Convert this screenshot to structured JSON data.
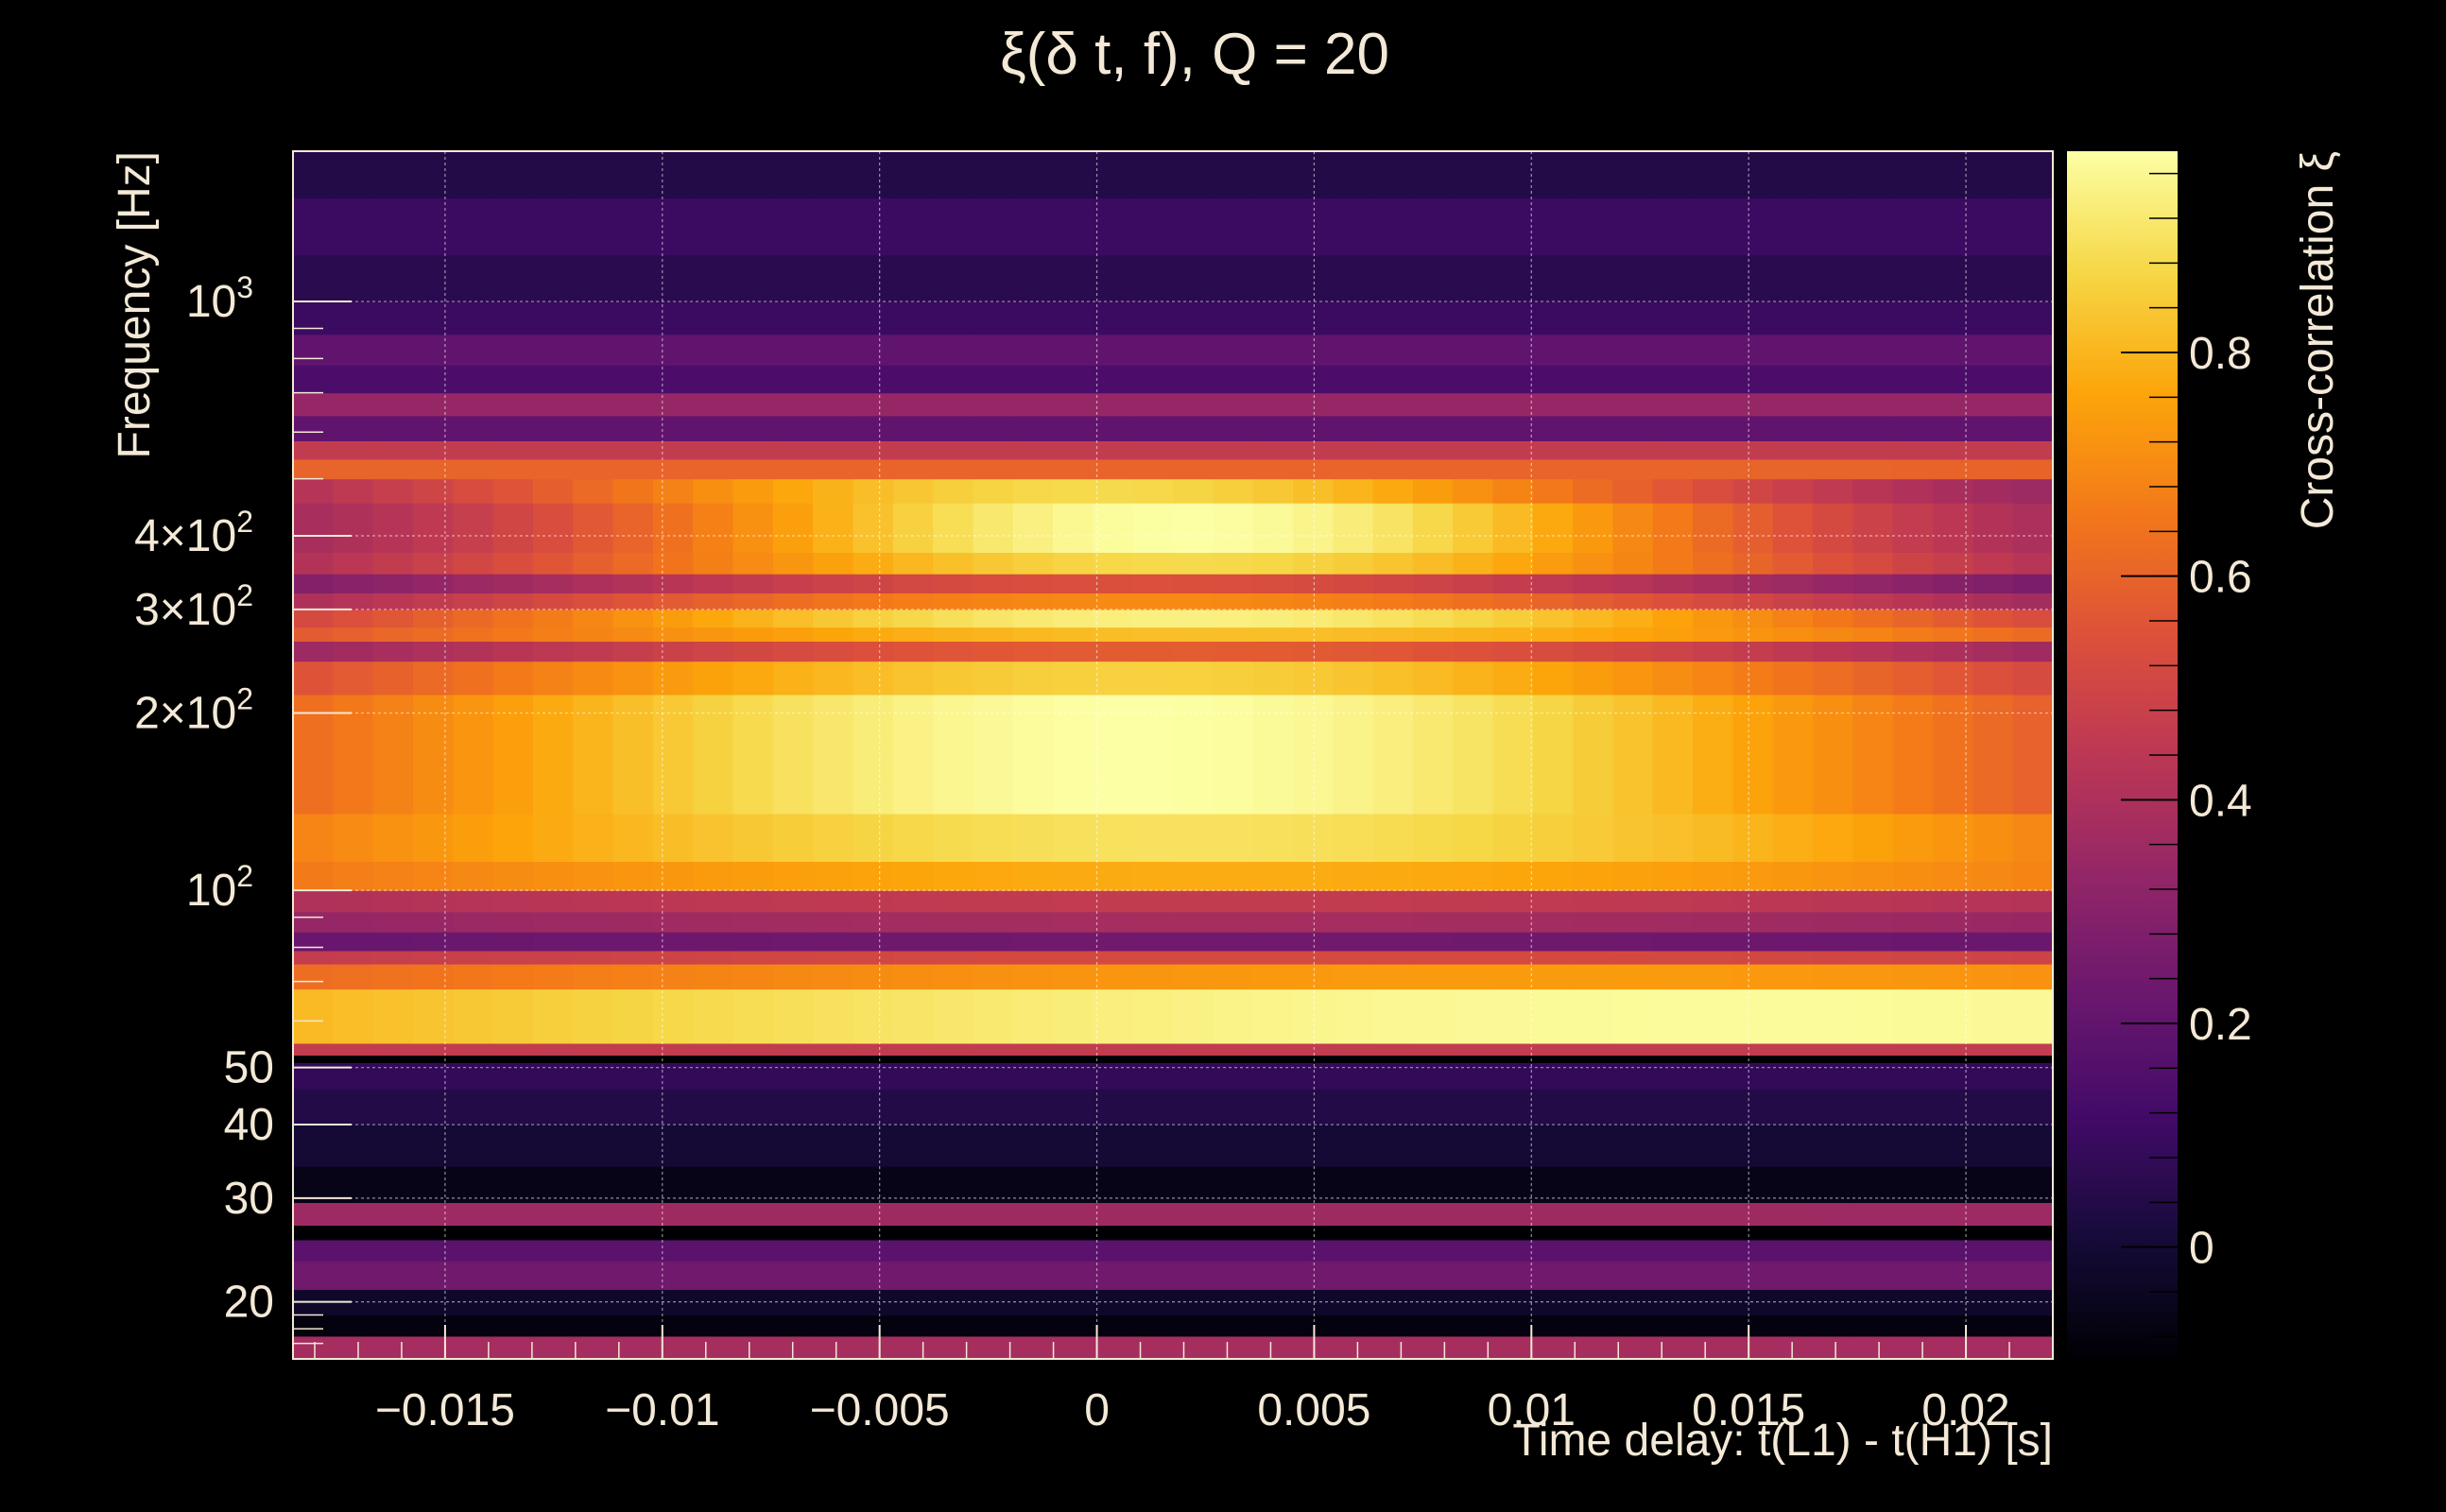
{
  "chart_data": {
    "type": "heatmap",
    "title": "ξ(δ t, f), Q = 20",
    "xlabel": "Time delay: t(L1) - t(H1) [s]",
    "ylabel": "Frequency [Hz]",
    "colorbar_label": "Cross-correlation ξ",
    "xlim": [
      -0.0185,
      0.022
    ],
    "ylim": [
      16,
      1800
    ],
    "y_scale": "log",
    "grid": true,
    "colormap": "inferno",
    "zlim": [
      -0.1,
      0.98
    ],
    "x_ticks": [
      {
        "value": -0.015,
        "label": "−0.015"
      },
      {
        "value": -0.01,
        "label": "−0.01"
      },
      {
        "value": -0.005,
        "label": "−0.005"
      },
      {
        "value": 0,
        "label": "0"
      },
      {
        "value": 0.005,
        "label": "0.005"
      },
      {
        "value": 0.01,
        "label": "0.01"
      },
      {
        "value": 0.015,
        "label": "0.015"
      },
      {
        "value": 0.02,
        "label": "0.02"
      }
    ],
    "y_ticks": [
      {
        "value": 20,
        "label": "20"
      },
      {
        "value": 30,
        "label": "30"
      },
      {
        "value": 40,
        "label": "40"
      },
      {
        "value": 50,
        "label": "50"
      },
      {
        "value": 100,
        "label": "10",
        "sup": "2"
      },
      {
        "value": 200,
        "label": "2×10",
        "sup": "2"
      },
      {
        "value": 300,
        "label": "3×10",
        "sup": "2"
      },
      {
        "value": 400,
        "label": "4×10",
        "sup": "2"
      },
      {
        "value": 1000,
        "label": "10",
        "sup": "3"
      }
    ],
    "colorbar_ticks": [
      {
        "value": 0,
        "label": "0"
      },
      {
        "value": 0.2,
        "label": "0.2"
      },
      {
        "value": 0.4,
        "label": "0.4"
      },
      {
        "value": 0.6,
        "label": "0.6"
      },
      {
        "value": 0.8,
        "label": "0.8"
      }
    ],
    "bands": [
      {
        "f_low": 16,
        "f_high": 17.5,
        "peak": 0.38,
        "t_center": 0.003,
        "width": 0.25,
        "tilt": 0
      },
      {
        "f_low": 17.5,
        "f_high": 19.0,
        "peak": -0.08,
        "t_center": 0.003,
        "width": 0.3,
        "tilt": 0
      },
      {
        "f_low": 19.0,
        "f_high": 21.0,
        "peak": -0.02,
        "t_center": 0.003,
        "width": 0.3,
        "tilt": 0
      },
      {
        "f_low": 21.0,
        "f_high": 23.5,
        "peak": 0.24,
        "t_center": 0.003,
        "width": 0.25,
        "tilt": 0
      },
      {
        "f_low": 23.5,
        "f_high": 25.5,
        "peak": 0.18,
        "t_center": 0.003,
        "width": 0.25,
        "tilt": 0
      },
      {
        "f_low": 25.5,
        "f_high": 27.0,
        "peak": -0.12,
        "t_center": 0.003,
        "width": 0.3,
        "tilt": 0
      },
      {
        "f_low": 27.0,
        "f_high": 29.5,
        "peak": 0.36,
        "t_center": 0.003,
        "width": 0.25,
        "tilt": 0
      },
      {
        "f_low": 29.5,
        "f_high": 34.0,
        "peak": -0.06,
        "t_center": 0.003,
        "width": 0.3,
        "tilt": 0
      },
      {
        "f_low": 34.0,
        "f_high": 40.0,
        "peak": 0.0,
        "t_center": 0.003,
        "width": 0.3,
        "tilt": 0
      },
      {
        "f_low": 40.0,
        "f_high": 46.0,
        "peak": 0.04,
        "t_center": 0.003,
        "width": 0.3,
        "tilt": 0
      },
      {
        "f_low": 46.0,
        "f_high": 51.0,
        "peak": 0.08,
        "t_center": 0.003,
        "width": 0.3,
        "tilt": 0
      },
      {
        "f_low": 51.0,
        "f_high": 52.5,
        "peak": -0.12,
        "t_center": 0.003,
        "width": 0.3,
        "tilt": 0
      },
      {
        "f_low": 52.5,
        "f_high": 55.0,
        "peak": 0.46,
        "t_center": 0.003,
        "width": 0.25,
        "tilt": 0
      },
      {
        "f_low": 55.0,
        "f_high": 68.0,
        "peak": 0.97,
        "t_center": 0.015,
        "width": 0.045,
        "tilt": 0
      },
      {
        "f_low": 68.0,
        "f_high": 75.0,
        "peak": 0.74,
        "t_center": 0.01,
        "width": 0.04,
        "tilt": 0
      },
      {
        "f_low": 75.0,
        "f_high": 79.0,
        "peak": 0.52,
        "t_center": 0.005,
        "width": 0.04,
        "tilt": 0
      },
      {
        "f_low": 79.0,
        "f_high": 85.0,
        "peak": 0.24,
        "t_center": 0.003,
        "width": 0.04,
        "tilt": 0
      },
      {
        "f_low": 85.0,
        "f_high": 92.0,
        "peak": 0.38,
        "t_center": 0.003,
        "width": 0.035,
        "tilt": 0
      },
      {
        "f_low": 92.0,
        "f_high": 100.0,
        "peak": 0.46,
        "t_center": 0.003,
        "width": 0.035,
        "tilt": 0
      },
      {
        "f_low": 100.0,
        "f_high": 112.0,
        "peak": 0.78,
        "t_center": 0.003,
        "width": 0.03,
        "tilt": 0
      },
      {
        "f_low": 112.0,
        "f_high": 135.0,
        "peak": 0.9,
        "t_center": 0.002,
        "width": 0.022,
        "tilt": 0
      },
      {
        "f_low": 135.0,
        "f_high": 215.0,
        "peak": 0.98,
        "t_center": 0.001,
        "width": 0.016,
        "tilt": 0
      },
      {
        "f_low": 215.0,
        "f_high": 245.0,
        "peak": 0.86,
        "t_center": 0.001,
        "width": 0.016,
        "tilt": 0
      },
      {
        "f_low": 245.0,
        "f_high": 265.0,
        "peak": 0.58,
        "t_center": 0.002,
        "width": 0.016,
        "tilt": 0
      },
      {
        "f_low": 265.0,
        "f_high": 280.0,
        "peak": 0.82,
        "t_center": 0.003,
        "width": 0.02,
        "tilt": 0
      },
      {
        "f_low": 280.0,
        "f_high": 300.0,
        "peak": 0.94,
        "t_center": 0.002,
        "width": 0.014,
        "tilt": 0
      },
      {
        "f_low": 300.0,
        "f_high": 320.0,
        "peak": 0.7,
        "t_center": 0.001,
        "width": 0.014,
        "tilt": 0
      },
      {
        "f_low": 320.0,
        "f_high": 345.0,
        "peak": 0.54,
        "t_center": 0.001,
        "width": 0.013,
        "tilt": 0
      },
      {
        "f_low": 345.0,
        "f_high": 375.0,
        "peak": 0.88,
        "t_center": 0.002,
        "width": 0.012,
        "tilt": 0
      },
      {
        "f_low": 375.0,
        "f_high": 455.0,
        "peak": 0.98,
        "t_center": 0.002,
        "width": 0.01,
        "tilt": 0
      },
      {
        "f_low": 455.0,
        "f_high": 500.0,
        "peak": 0.88,
        "t_center": 0.0,
        "width": 0.011,
        "tilt": 0
      },
      {
        "f_low": 500.0,
        "f_high": 540.0,
        "peak": 0.6,
        "t_center": 0.0,
        "width": 0.3,
        "tilt": 0
      },
      {
        "f_low": 540.0,
        "f_high": 580.0,
        "peak": 0.46,
        "t_center": 0.0,
        "width": 0.3,
        "tilt": 0
      },
      {
        "f_low": 580.0,
        "f_high": 640.0,
        "peak": 0.2,
        "t_center": 0.0,
        "width": 0.3,
        "tilt": 0
      },
      {
        "f_low": 640.0,
        "f_high": 700.0,
        "peak": 0.34,
        "t_center": 0.0,
        "width": 0.3,
        "tilt": 0
      },
      {
        "f_low": 700.0,
        "f_high": 780.0,
        "peak": 0.14,
        "t_center": 0.0,
        "width": 0.3,
        "tilt": 0
      },
      {
        "f_low": 780.0,
        "f_high": 880.0,
        "peak": 0.2,
        "t_center": 0.0,
        "width": 0.3,
        "tilt": 0
      },
      {
        "f_low": 880.0,
        "f_high": 1000.0,
        "peak": 0.1,
        "t_center": 0.0,
        "width": 0.3,
        "tilt": 0
      },
      {
        "f_low": 1000.0,
        "f_high": 1200.0,
        "peak": 0.06,
        "t_center": 0.0,
        "width": 0.3,
        "tilt": 0
      },
      {
        "f_low": 1200.0,
        "f_high": 1500.0,
        "peak": 0.1,
        "t_center": 0.0,
        "width": 0.3,
        "tilt": 0
      },
      {
        "f_low": 1500.0,
        "f_high": 1800.0,
        "peak": 0.04,
        "t_center": 0.0,
        "width": 0.3,
        "tilt": 0
      }
    ],
    "edge_floor": 0.3
  }
}
